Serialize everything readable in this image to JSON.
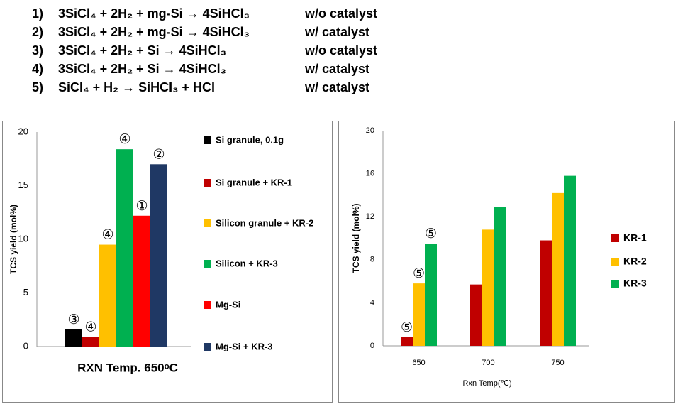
{
  "reactions": [
    {
      "number": "1)",
      "equation": "3SiCl₄ + 2H₂ + mg-Si → 4SiHCl₃",
      "condition": "w/o catalyst"
    },
    {
      "number": "2)",
      "equation": "3SiCl₄ + 2H₂ + mg-Si → 4SiHCl₃",
      "condition": "w/ catalyst"
    },
    {
      "number": "3)",
      "equation": "3SiCl₄ + 2H₂ + Si → 4SiHCl₃",
      "condition": "w/o catalyst"
    },
    {
      "number": "4)",
      "equation": "3SiCl₄ + 2H₂ + Si → 4SiHCl₃",
      "condition": "w/ catalyst"
    },
    {
      "number": "5)",
      "equation": "SiCl₄ + H₂ → SiHCl₃ + HCl",
      "condition": "w/ catalyst"
    }
  ],
  "chart_data": [
    {
      "type": "bar",
      "x_label": "RXN Temp. 650ᵒC",
      "y_label": "TCS yield (mol%)",
      "categories": [
        null
      ],
      "series": [
        {
          "name": "Si granule, 0.1g",
          "color": "#000000",
          "values": [
            1.6
          ],
          "point_labels": [
            "③"
          ]
        },
        {
          "name": "Si granule +  KR-1",
          "color": "#c00000",
          "values": [
            0.9
          ],
          "point_labels": [
            "④"
          ]
        },
        {
          "name": "Silicon granule +  KR-2",
          "color": "#ffc000",
          "values": [
            9.5
          ],
          "point_labels": [
            "④"
          ]
        },
        {
          "name": "Silicon +  KR-3",
          "color": "#00b050",
          "values": [
            18.4
          ],
          "point_labels": [
            "④"
          ]
        },
        {
          "name": "Mg-Si",
          "color": "#ff0000",
          "values": [
            12.2
          ],
          "point_labels": [
            "①"
          ]
        },
        {
          "name": "Mg-Si +  KR-3",
          "color": "#1f3864",
          "values": [
            17.0
          ],
          "point_labels": [
            "②"
          ]
        }
      ],
      "ylim": [
        0,
        20
      ],
      "yticks": [
        0,
        5,
        10,
        15,
        20
      ],
      "grid": false
    },
    {
      "type": "bar",
      "x_label": "Rxn Temp(℃)",
      "y_label": "TCS yield (mol%)",
      "categories": [
        "650",
        "700",
        "750"
      ],
      "series": [
        {
          "name": "KR-1",
          "color": "#c00000",
          "values": [
            0.8,
            5.7,
            9.8
          ],
          "point_labels": [
            "⑤",
            null,
            null
          ]
        },
        {
          "name": "KR-2",
          "color": "#ffc000",
          "values": [
            5.8,
            10.8,
            14.2
          ],
          "point_labels": [
            "⑤",
            null,
            null
          ]
        },
        {
          "name": "KR-3",
          "color": "#00b050",
          "values": [
            9.5,
            12.9,
            15.8
          ],
          "point_labels": [
            "⑤",
            null,
            null
          ]
        }
      ],
      "ylim": [
        0,
        20
      ],
      "yticks": [
        0,
        4,
        8,
        12,
        16,
        20
      ],
      "grid": false
    }
  ]
}
